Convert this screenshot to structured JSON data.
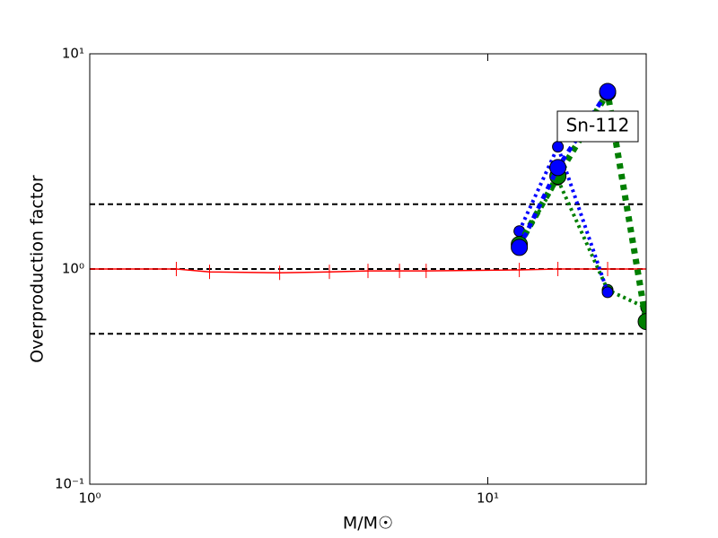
{
  "chart_data": {
    "type": "line",
    "xlabel": "M/M☉",
    "ylabel": "Overproduction factor",
    "xscale": "log",
    "yscale": "log",
    "xlim": [
      1,
      25
    ],
    "ylim": [
      0.1,
      10
    ],
    "xticks": [
      {
        "value": 1,
        "label": "10⁰"
      },
      {
        "value": 10,
        "label": "10¹"
      }
    ],
    "yticks": [
      {
        "value": 0.1,
        "label": "10⁻¹"
      },
      {
        "value": 1,
        "label": "10⁰"
      },
      {
        "value": 10,
        "label": "10¹"
      }
    ],
    "hlines": [
      2,
      1,
      0.5
    ],
    "annotation": "Sn-112",
    "series": [
      {
        "color": "#ff0000",
        "dash": "none",
        "width": 1.5,
        "marker": "|",
        "marker_size": 16,
        "x": [
          1,
          1.65,
          2,
          3,
          4,
          5,
          6,
          7,
          12,
          15,
          20,
          25
        ],
        "values": [
          1,
          1,
          0.97,
          0.96,
          0.97,
          0.98,
          0.98,
          0.98,
          0.99,
          1,
          1,
          1
        ]
      },
      {
        "color": "#007f00",
        "dash": "3,4",
        "width": 4,
        "marker": "o",
        "marker_size": 6,
        "x": [
          12,
          15,
          20,
          25
        ],
        "values": [
          1.3,
          2.6,
          0.8,
          0.66
        ]
      },
      {
        "color": "#0000ff",
        "dash": "3,4",
        "width": 4,
        "marker": "o",
        "marker_size": 6,
        "x": [
          12,
          15,
          20
        ],
        "values": [
          1.5,
          3.7,
          0.78
        ]
      },
      {
        "color": "#007f00",
        "dash": "6,6",
        "width": 7,
        "marker": "o",
        "marker_size": 9,
        "x": [
          12,
          15,
          20,
          25
        ],
        "values": [
          1.3,
          2.7,
          6.6,
          0.57
        ]
      },
      {
        "color": "#0000ff",
        "dash": "6,6",
        "width": 5,
        "marker": "o",
        "marker_size": 9,
        "x": [
          12,
          15,
          20
        ],
        "values": [
          1.26,
          2.96,
          6.68
        ]
      }
    ]
  }
}
